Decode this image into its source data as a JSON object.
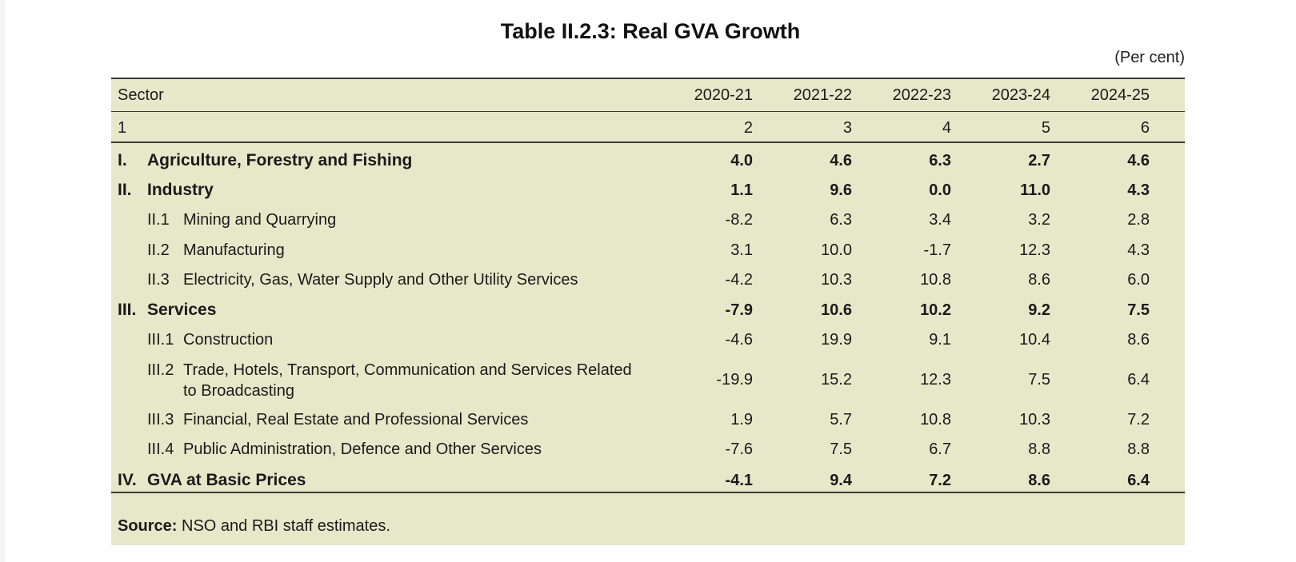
{
  "title": "Table II.2.3: Real GVA Growth",
  "unit": "(Per cent)",
  "header": {
    "sector": "Sector",
    "years": [
      "2020-21",
      "2021-22",
      "2022-23",
      "2023-24",
      "2024-25"
    ]
  },
  "col_numbers": [
    "1",
    "2",
    "3",
    "4",
    "5",
    "6"
  ],
  "rows": [
    {
      "code": "I.",
      "label": "Agriculture, Forestry and Fishing",
      "values": [
        "4.0",
        "4.6",
        "6.3",
        "2.7",
        "4.6"
      ]
    },
    {
      "code": "II.",
      "label": "Industry",
      "values": [
        "1.1",
        "9.6",
        "0.0",
        "11.0",
        "4.3"
      ]
    },
    {
      "code": "II.1",
      "label": "Mining and Quarrying",
      "values": [
        "-8.2",
        "6.3",
        "3.4",
        "3.2",
        "2.8"
      ]
    },
    {
      "code": "II.2",
      "label": "Manufacturing",
      "values": [
        "3.1",
        "10.0",
        "-1.7",
        "12.3",
        "4.3"
      ]
    },
    {
      "code": "II.3",
      "label": "Electricity, Gas, Water Supply and Other Utility Services",
      "values": [
        "-4.2",
        "10.3",
        "10.8",
        "8.6",
        "6.0"
      ]
    },
    {
      "code": "III.",
      "label": "Services",
      "values": [
        "-7.9",
        "10.6",
        "10.2",
        "9.2",
        "7.5"
      ]
    },
    {
      "code": "III.1",
      "label": "Construction",
      "values": [
        "-4.6",
        "19.9",
        "9.1",
        "10.4",
        "8.6"
      ]
    },
    {
      "code": "III.2",
      "label_line1": "Trade, Hotels, Transport, Communication and Services Related",
      "label_line2": "to Broadcasting",
      "values": [
        "-19.9",
        "15.2",
        "12.3",
        "7.5",
        "6.4"
      ]
    },
    {
      "code": "III.3",
      "label": "Financial, Real Estate and Professional Services",
      "values": [
        "1.9",
        "5.7",
        "10.8",
        "10.3",
        "7.2"
      ]
    },
    {
      "code": "III.4",
      "label": "Public Administration, Defence and Other Services",
      "values": [
        "-7.6",
        "7.5",
        "6.7",
        "8.8",
        "8.8"
      ]
    },
    {
      "code": "IV.",
      "label": "GVA at Basic Prices",
      "values": [
        "-4.1",
        "9.4",
        "7.2",
        "8.6",
        "6.4"
      ]
    }
  ],
  "source": {
    "label": "Source:",
    "text": " NSO and RBI staff estimates."
  }
}
